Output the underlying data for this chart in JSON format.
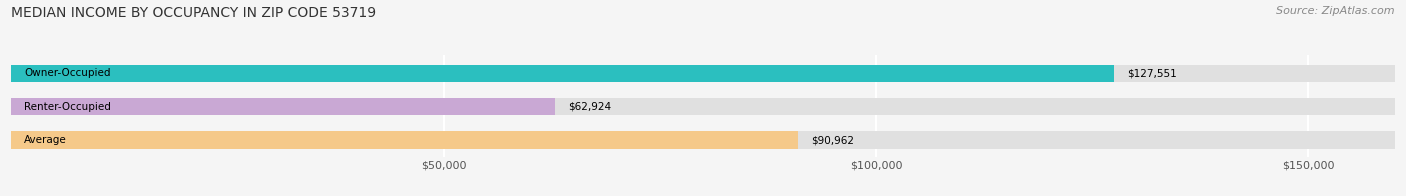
{
  "title": "MEDIAN INCOME BY OCCUPANCY IN ZIP CODE 53719",
  "source": "Source: ZipAtlas.com",
  "categories": [
    "Owner-Occupied",
    "Renter-Occupied",
    "Average"
  ],
  "values": [
    127551,
    62924,
    90962
  ],
  "bar_colors": [
    "#2bbfbf",
    "#c9a8d4",
    "#f5c98a"
  ],
  "value_labels": [
    "$127,551",
    "$62,924",
    "$90,962"
  ],
  "xlim": [
    0,
    160000
  ],
  "xticks": [
    50000,
    100000,
    150000
  ],
  "xticklabels": [
    "$50,000",
    "$100,000",
    "$150,000"
  ],
  "background_color": "#f5f5f5",
  "bar_background_color": "#e0e0e0",
  "title_fontsize": 10,
  "source_fontsize": 8,
  "bar_height": 0.52,
  "figsize": [
    14.06,
    1.96
  ],
  "dpi": 100
}
